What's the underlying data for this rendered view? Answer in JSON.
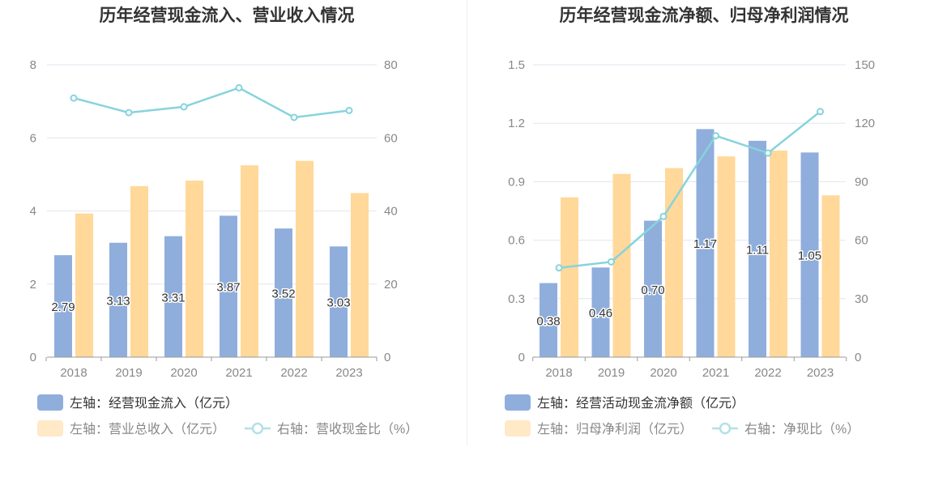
{
  "chart_data": [
    {
      "type": "bar",
      "title": "历年经营现金流入、营业收入情况",
      "categories": [
        "2018",
        "2019",
        "2020",
        "2021",
        "2022",
        "2023"
      ],
      "ylim_left": [
        0,
        8
      ],
      "yticks_left": [
        "0",
        "2",
        "4",
        "6",
        "8"
      ],
      "ylim_right": [
        0,
        80
      ],
      "yticks_right": [
        "0",
        "20",
        "40",
        "60",
        "80"
      ],
      "grid": true,
      "legend_position": "bottom-left",
      "series": [
        {
          "name": "左轴：经营现金流入（亿元）",
          "type": "bar",
          "axis": "left",
          "color": "#8FAEDC",
          "values": [
            2.79,
            3.13,
            3.31,
            3.87,
            3.52,
            3.03
          ],
          "labels": [
            "2.79",
            "3.13",
            "3.31",
            "3.87",
            "3.52",
            "3.03"
          ]
        },
        {
          "name": "左轴：营业总收入（亿元）",
          "type": "bar",
          "axis": "left",
          "color": "#FFD89A",
          "values": [
            3.93,
            4.68,
            4.83,
            5.25,
            5.37,
            4.49
          ]
        },
        {
          "name": "右轴：营收现金比（%）",
          "type": "line",
          "axis": "right",
          "color": "#87D3DC",
          "values": [
            70.9,
            66.9,
            68.5,
            73.7,
            65.6,
            67.5
          ]
        }
      ]
    },
    {
      "type": "bar",
      "title": "历年经营现金流净额、归母净利润情况",
      "categories": [
        "2018",
        "2019",
        "2020",
        "2021",
        "2022",
        "2023"
      ],
      "ylim_left": [
        0,
        1.5
      ],
      "yticks_left": [
        "0",
        "0.3",
        "0.6",
        "0.9",
        "1.2",
        "1.5"
      ],
      "ylim_right": [
        0,
        150
      ],
      "yticks_right": [
        "0",
        "30",
        "60",
        "90",
        "120",
        "150"
      ],
      "grid": true,
      "legend_position": "bottom-left",
      "series": [
        {
          "name": "左轴：经营活动现金流净额（亿元）",
          "type": "bar",
          "axis": "left",
          "color": "#8FAEDC",
          "values": [
            0.38,
            0.46,
            0.7,
            1.17,
            1.11,
            1.05
          ],
          "labels": [
            "0.38",
            "0.46",
            "0.70",
            "1.17",
            "1.11",
            "1.05"
          ]
        },
        {
          "name": "左轴：归母净利润（亿元）",
          "type": "bar",
          "axis": "left",
          "color": "#FFD89A",
          "values": [
            0.82,
            0.94,
            0.97,
            1.03,
            1.06,
            0.83
          ]
        },
        {
          "name": "右轴：净现比（%）",
          "type": "line",
          "axis": "right",
          "color": "#87D3DC",
          "values": [
            45.8,
            48.9,
            72.2,
            113.6,
            104.7,
            126.0
          ]
        }
      ]
    }
  ]
}
